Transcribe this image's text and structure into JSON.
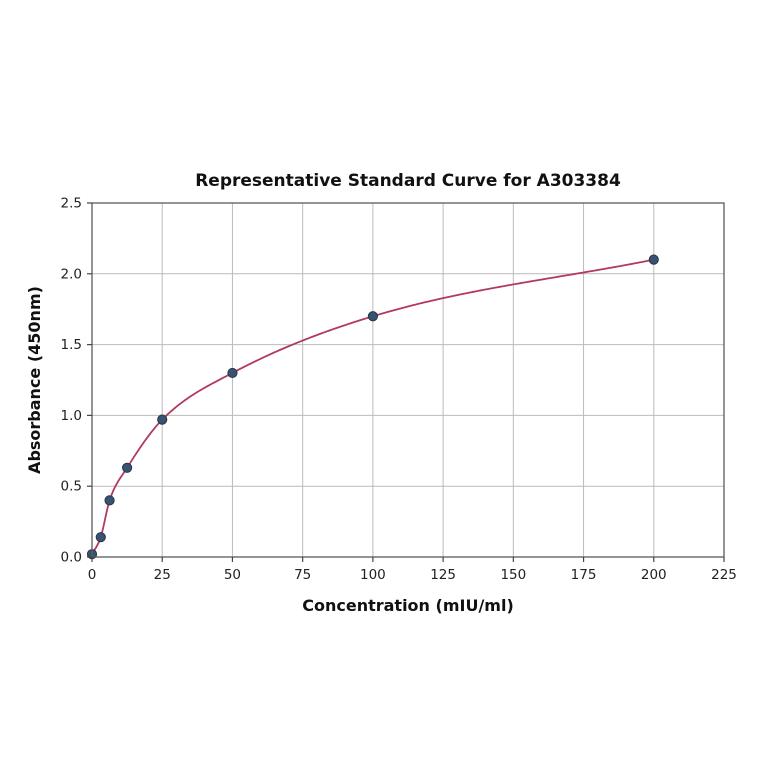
{
  "chart_data": {
    "type": "scatter",
    "title": "Representative Standard Curve for A303384",
    "xlabel": "Concentration (mIU/ml)",
    "ylabel": "Absorbance (450nm)",
    "xlim": [
      0,
      225
    ],
    "ylim": [
      0,
      2.5
    ],
    "x_ticks": [
      0,
      25,
      50,
      75,
      100,
      125,
      150,
      175,
      200,
      225
    ],
    "y_ticks": [
      0.0,
      0.5,
      1.0,
      1.5,
      2.0,
      2.5
    ],
    "grid": true,
    "legend_position": "none",
    "series": [
      {
        "name": "standard-curve",
        "x": [
          0,
          3.125,
          6.25,
          12.5,
          25,
          50,
          100,
          200
        ],
        "y": [
          0.02,
          0.14,
          0.4,
          0.63,
          0.97,
          1.3,
          1.7,
          2.1
        ],
        "marker": "circle",
        "marker_color": "#3a5270",
        "marker_edge_color": "#24364c",
        "line_color": "#b23a5e"
      }
    ],
    "colors": {
      "grid": "#bbbbbb",
      "spine": "#5a5a5a",
      "tick": "#444444",
      "background": "#ffffff"
    }
  }
}
